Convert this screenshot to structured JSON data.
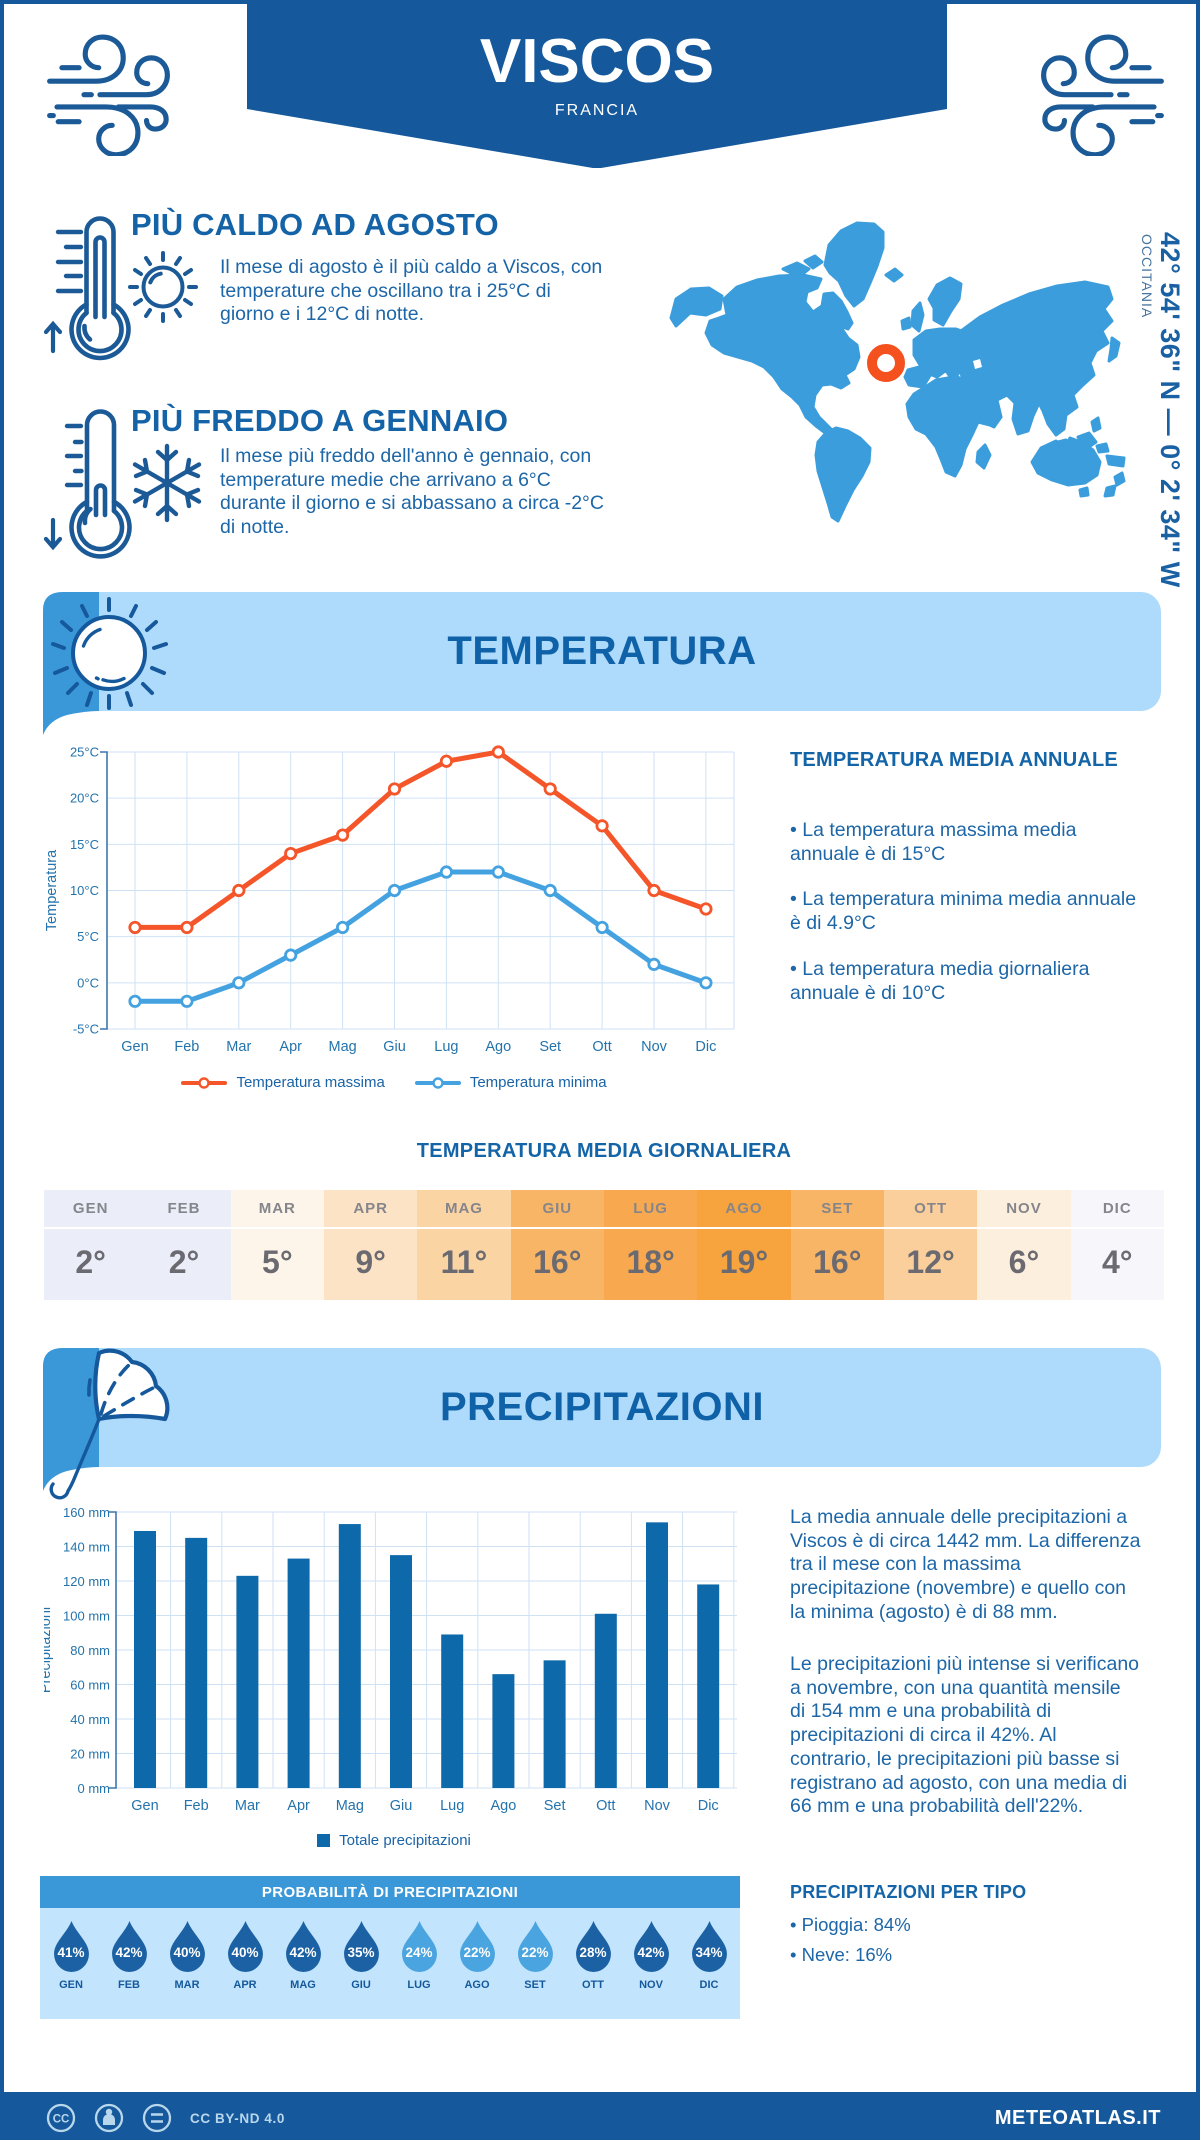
{
  "header": {
    "title": "VISCOS",
    "subtitle": "FRANCIA"
  },
  "highlights": [
    {
      "title": "PIÙ CALDO AD AGOSTO",
      "text": "Il mese di agosto è il più caldo a Viscos, con\ntemperature che oscillano tra i 25°C di\ngiorno e i 12°C di notte."
    },
    {
      "title": "PIÙ FREDDO A GENNAIO",
      "text": "Il mese più freddo dell'anno è gennaio, con\ntemperature medie che arrivano a 6°C\ndurante il giorno e si abbassano a circa -2°C\ndi notte."
    }
  ],
  "map": {
    "coordinates": "42° 54' 36\" N — 0° 2' 34\" W",
    "region": "OCCITANIA"
  },
  "sections": {
    "temperature": "TEMPERATURA",
    "precipitation": "PRECIPITAZIONI"
  },
  "chart_data": [
    {
      "type": "line",
      "title": "TEMPERATURA",
      "categories": [
        "Gen",
        "Feb",
        "Mar",
        "Apr",
        "Mag",
        "Giu",
        "Lug",
        "Ago",
        "Set",
        "Ott",
        "Nov",
        "Dic"
      ],
      "series": [
        {
          "name": "Temperatura massima",
          "color": "#f4562a",
          "values": [
            6,
            6,
            10,
            14,
            16,
            21,
            24,
            25,
            21,
            17,
            10,
            8
          ]
        },
        {
          "name": "Temperatura minima",
          "color": "#45a2e0",
          "values": [
            -2,
            -2,
            0,
            3,
            6,
            10,
            12,
            12,
            10,
            6,
            2,
            0
          ]
        }
      ],
      "ylabel": "Temperatura",
      "ylim": [
        -5,
        25
      ],
      "ytick_step": 5,
      "ytick_suffix": "°C",
      "grid": true,
      "legend_position": "bottom"
    },
    {
      "type": "bar",
      "title": "PRECIPITAZIONI",
      "categories": [
        "Gen",
        "Feb",
        "Mar",
        "Apr",
        "Mag",
        "Giu",
        "Lug",
        "Ago",
        "Set",
        "Ott",
        "Nov",
        "Dic"
      ],
      "series": [
        {
          "name": "Totale precipitazioni",
          "color": "#0d69a9",
          "values": [
            149,
            145,
            123,
            133,
            153,
            135,
            89,
            66,
            74,
            101,
            154,
            118
          ]
        }
      ],
      "ylabel": "Precipitazioni",
      "ylim": [
        0,
        160
      ],
      "ytick_step": 20,
      "ytick_suffix": " mm",
      "grid": true,
      "legend_position": "bottom"
    }
  ],
  "annual_summary": {
    "title": "TEMPERATURA MEDIA ANNUALE",
    "bullets": [
      "• La temperatura massima media\nannuale è di 15°C",
      "• La temperatura minima media annuale\nè di 4.9°C",
      "• La temperatura media giornaliera\nannuale è di 10°C"
    ]
  },
  "daily_table": {
    "title": "TEMPERATURA MEDIA GIORNALIERA",
    "months": [
      "GEN",
      "FEB",
      "MAR",
      "APR",
      "MAG",
      "GIU",
      "LUG",
      "AGO",
      "SET",
      "OTT",
      "NOV",
      "DIC"
    ],
    "values": [
      "2°",
      "2°",
      "5°",
      "9°",
      "11°",
      "16°",
      "18°",
      "19°",
      "16°",
      "12°",
      "6°",
      "4°"
    ],
    "colors": [
      "#ebedf9",
      "#ebedf9",
      "#fdf5ea",
      "#fce3c5",
      "#fbd4a3",
      "#f9b566",
      "#f8a94f",
      "#f7a43f",
      "#f9b566",
      "#fbcf9c",
      "#fdefdd",
      "#f6f6fb"
    ]
  },
  "precip_summary": {
    "paragraphs": [
      "La media annuale delle precipitazioni a\nViscos è di circa 1442 mm. La differenza\ntra il mese con la massima\nprecipitazione (novembre) e quello con\nla minima (agosto) è di 88 mm.",
      "Le precipitazioni più intense si verificano\na novembre, con una quantità mensile\ndi 154 mm e una probabilità di\nprecipitazioni di circa il 42%. Al\ncontrario, le precipitazioni più basse si\nregistrano ad agosto, con una media di\n66 mm e una probabilità dell'22%."
    ]
  },
  "probability": {
    "title": "PROBABILITÀ DI PRECIPITAZIONI",
    "months": [
      "GEN",
      "FEB",
      "MAR",
      "APR",
      "MAG",
      "GIU",
      "LUG",
      "AGO",
      "SET",
      "OTT",
      "NOV",
      "DIC"
    ],
    "values": [
      "41%",
      "42%",
      "40%",
      "40%",
      "42%",
      "35%",
      "24%",
      "22%",
      "22%",
      "28%",
      "42%",
      "34%"
    ],
    "drop_dark": [
      true,
      true,
      true,
      true,
      true,
      true,
      false,
      false,
      false,
      true,
      true,
      true
    ],
    "drop_color_dark": "#1b61a3",
    "drop_color_light": "#4aa4df"
  },
  "precip_type": {
    "title": "PRECIPITAZIONI PER TIPO",
    "bullets": [
      "• Pioggia: 84%",
      "• Neve: 16%"
    ]
  },
  "footer": {
    "license": "CC BY-ND 4.0",
    "brand": "METEOATLAS.IT"
  }
}
